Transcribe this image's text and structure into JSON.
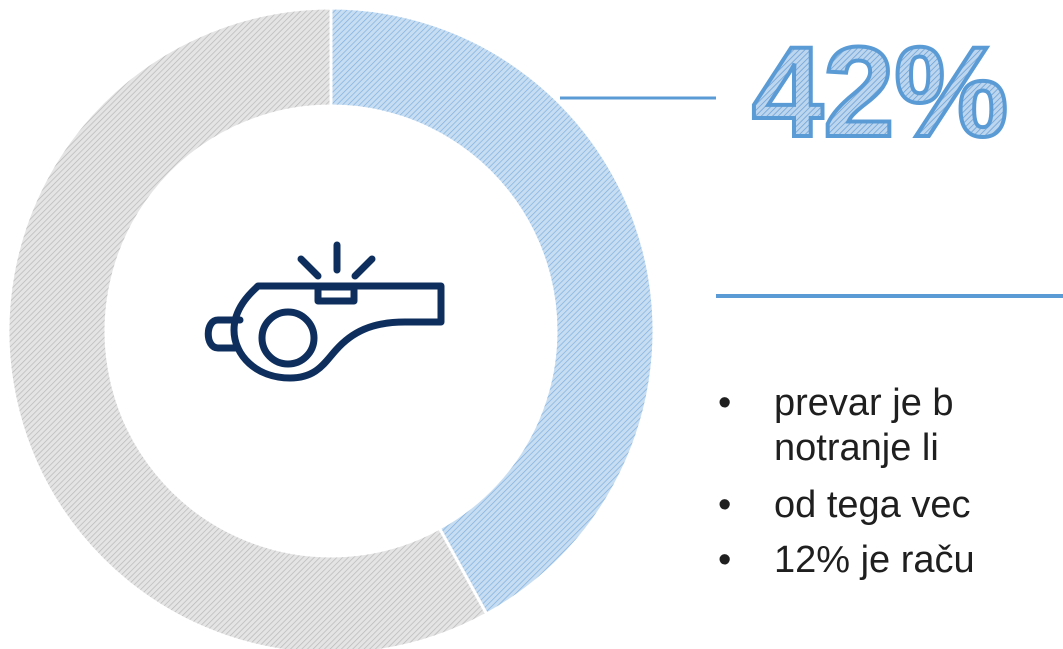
{
  "chart_data": {
    "type": "pie",
    "variant": "donut",
    "slices": [
      {
        "label": "",
        "value": 42,
        "color": "#9DC3E6",
        "pattern": "diagonal-hatch",
        "edge": "#5B9BD5"
      },
      {
        "label": "",
        "value": 58,
        "color": "#D0D0D0",
        "pattern": "diagonal-hatch",
        "edge": "#BFBFBF"
      }
    ],
    "highlight_label": "42%",
    "center_icon": "whistle-icon",
    "icon_color": "#0E2F5E"
  },
  "bullets": [
    "prevar je b",
    "notranje li",
    "od tega vec",
    "12% je raču"
  ]
}
